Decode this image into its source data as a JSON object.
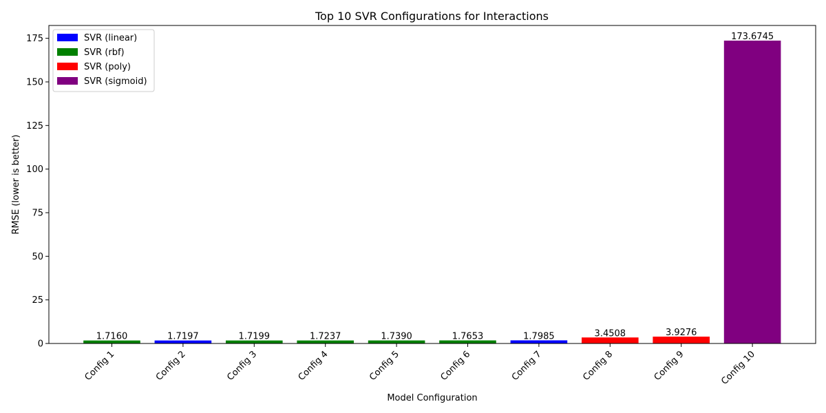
{
  "chart_data": {
    "type": "bar",
    "title": "Top 10 SVR Configurations for Interactions",
    "xlabel": "Model Configuration",
    "ylabel": "RMSE (lower is better)",
    "ylim": [
      0,
      182.36
    ],
    "yticks": [
      0,
      25,
      50,
      75,
      100,
      125,
      150,
      175
    ],
    "grid": false,
    "legend_position": "top-left",
    "categories": [
      "Config 1",
      "Config 2",
      "Config 3",
      "Config 4",
      "Config 5",
      "Config 6",
      "Config 7",
      "Config 8",
      "Config 9",
      "Config 10"
    ],
    "values": [
      1.716,
      1.7197,
      1.7199,
      1.7237,
      1.739,
      1.7653,
      1.7985,
      3.4508,
      3.9276,
      173.6745
    ],
    "value_labels": [
      "1.7160",
      "1.7197",
      "1.7199",
      "1.7237",
      "1.7390",
      "1.7653",
      "1.7985",
      "3.4508",
      "3.9276",
      "173.6745"
    ],
    "bar_groups": [
      "rbf",
      "linear",
      "rbf",
      "rbf",
      "rbf",
      "rbf",
      "linear",
      "poly",
      "poly",
      "sigmoid"
    ],
    "legend": [
      {
        "key": "linear",
        "label": "SVR (linear)",
        "color": "#0000ff"
      },
      {
        "key": "rbf",
        "label": "SVR (rbf)",
        "color": "#008000"
      },
      {
        "key": "poly",
        "label": "SVR (poly)",
        "color": "#ff0000"
      },
      {
        "key": "sigmoid",
        "label": "SVR (sigmoid)",
        "color": "#800080"
      }
    ]
  }
}
